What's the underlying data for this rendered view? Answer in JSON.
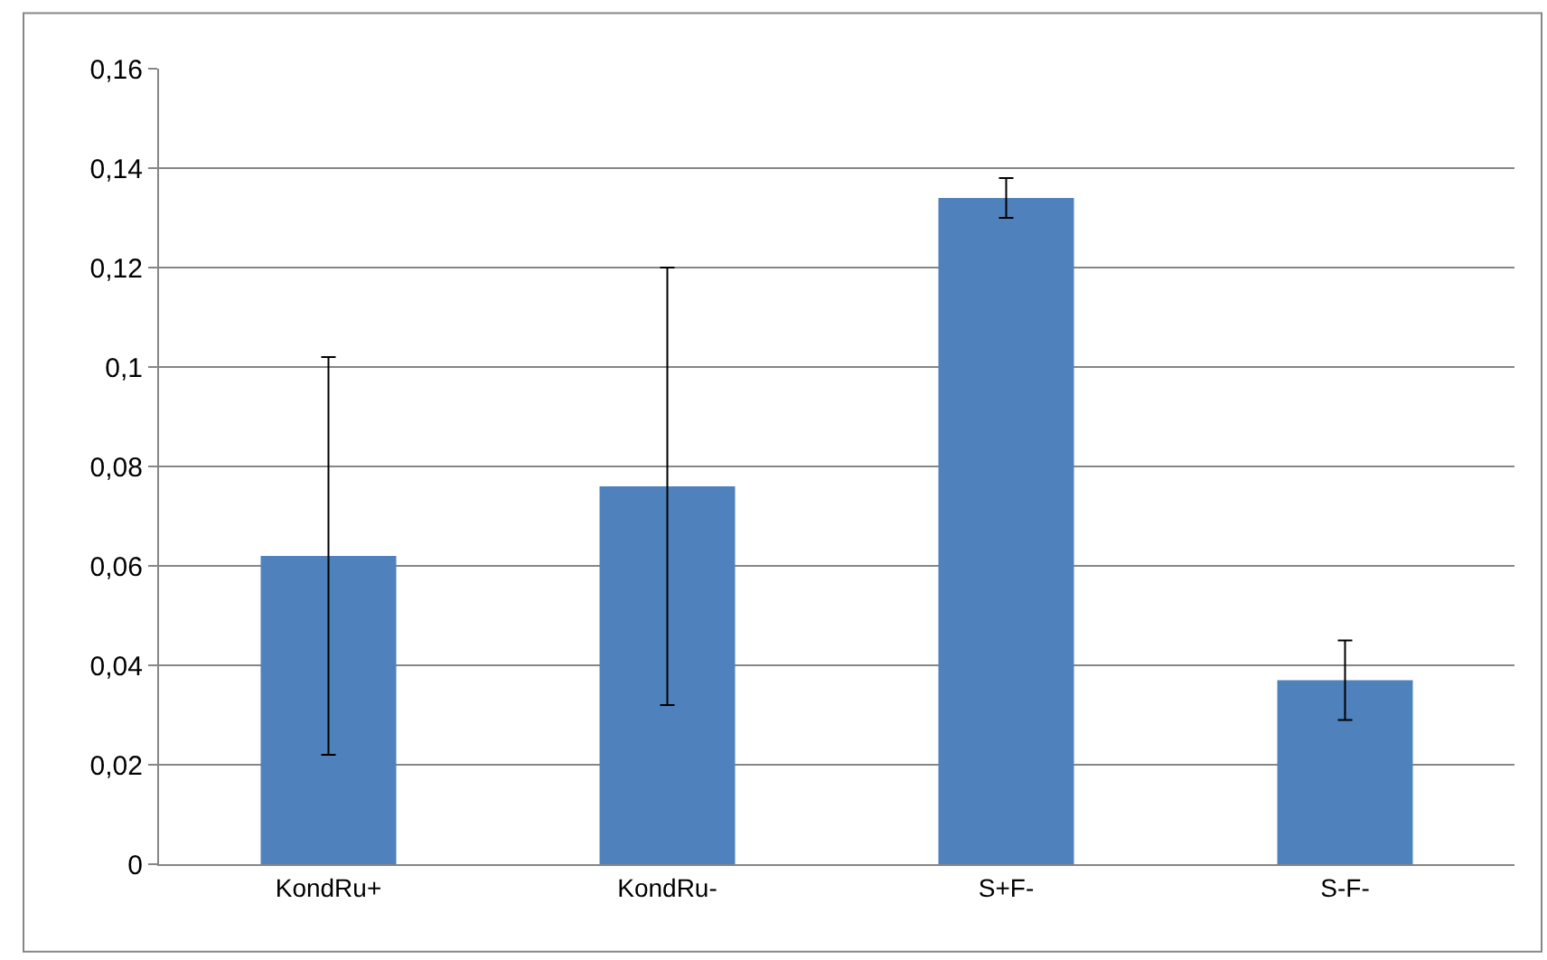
{
  "chart_data": {
    "type": "bar",
    "categories": [
      "KondRu+",
      "KondRu-",
      "S+F-",
      "S-F-"
    ],
    "values": [
      0.062,
      0.076,
      0.134,
      0.037
    ],
    "errors": [
      0.04,
      0.044,
      0.004,
      0.008
    ],
    "color": "#4f81bd",
    "ylim": [
      0,
      0.16
    ],
    "yticks": [
      0,
      {
        "value": 0.02,
        "label": "0,02"
      },
      {
        "value": 0.04,
        "label": "0,04"
      },
      {
        "value": 0.06,
        "label": "0,06"
      },
      {
        "value": 0.08,
        "label": "0,08"
      },
      {
        "value": 0.1,
        "label": "0,1"
      },
      {
        "value": 0.12,
        "label": "0,12"
      },
      {
        "value": 0.14,
        "label": "0,14"
      },
      {
        "value": 0.16,
        "label": "0,16"
      }
    ],
    "grid": "y"
  }
}
